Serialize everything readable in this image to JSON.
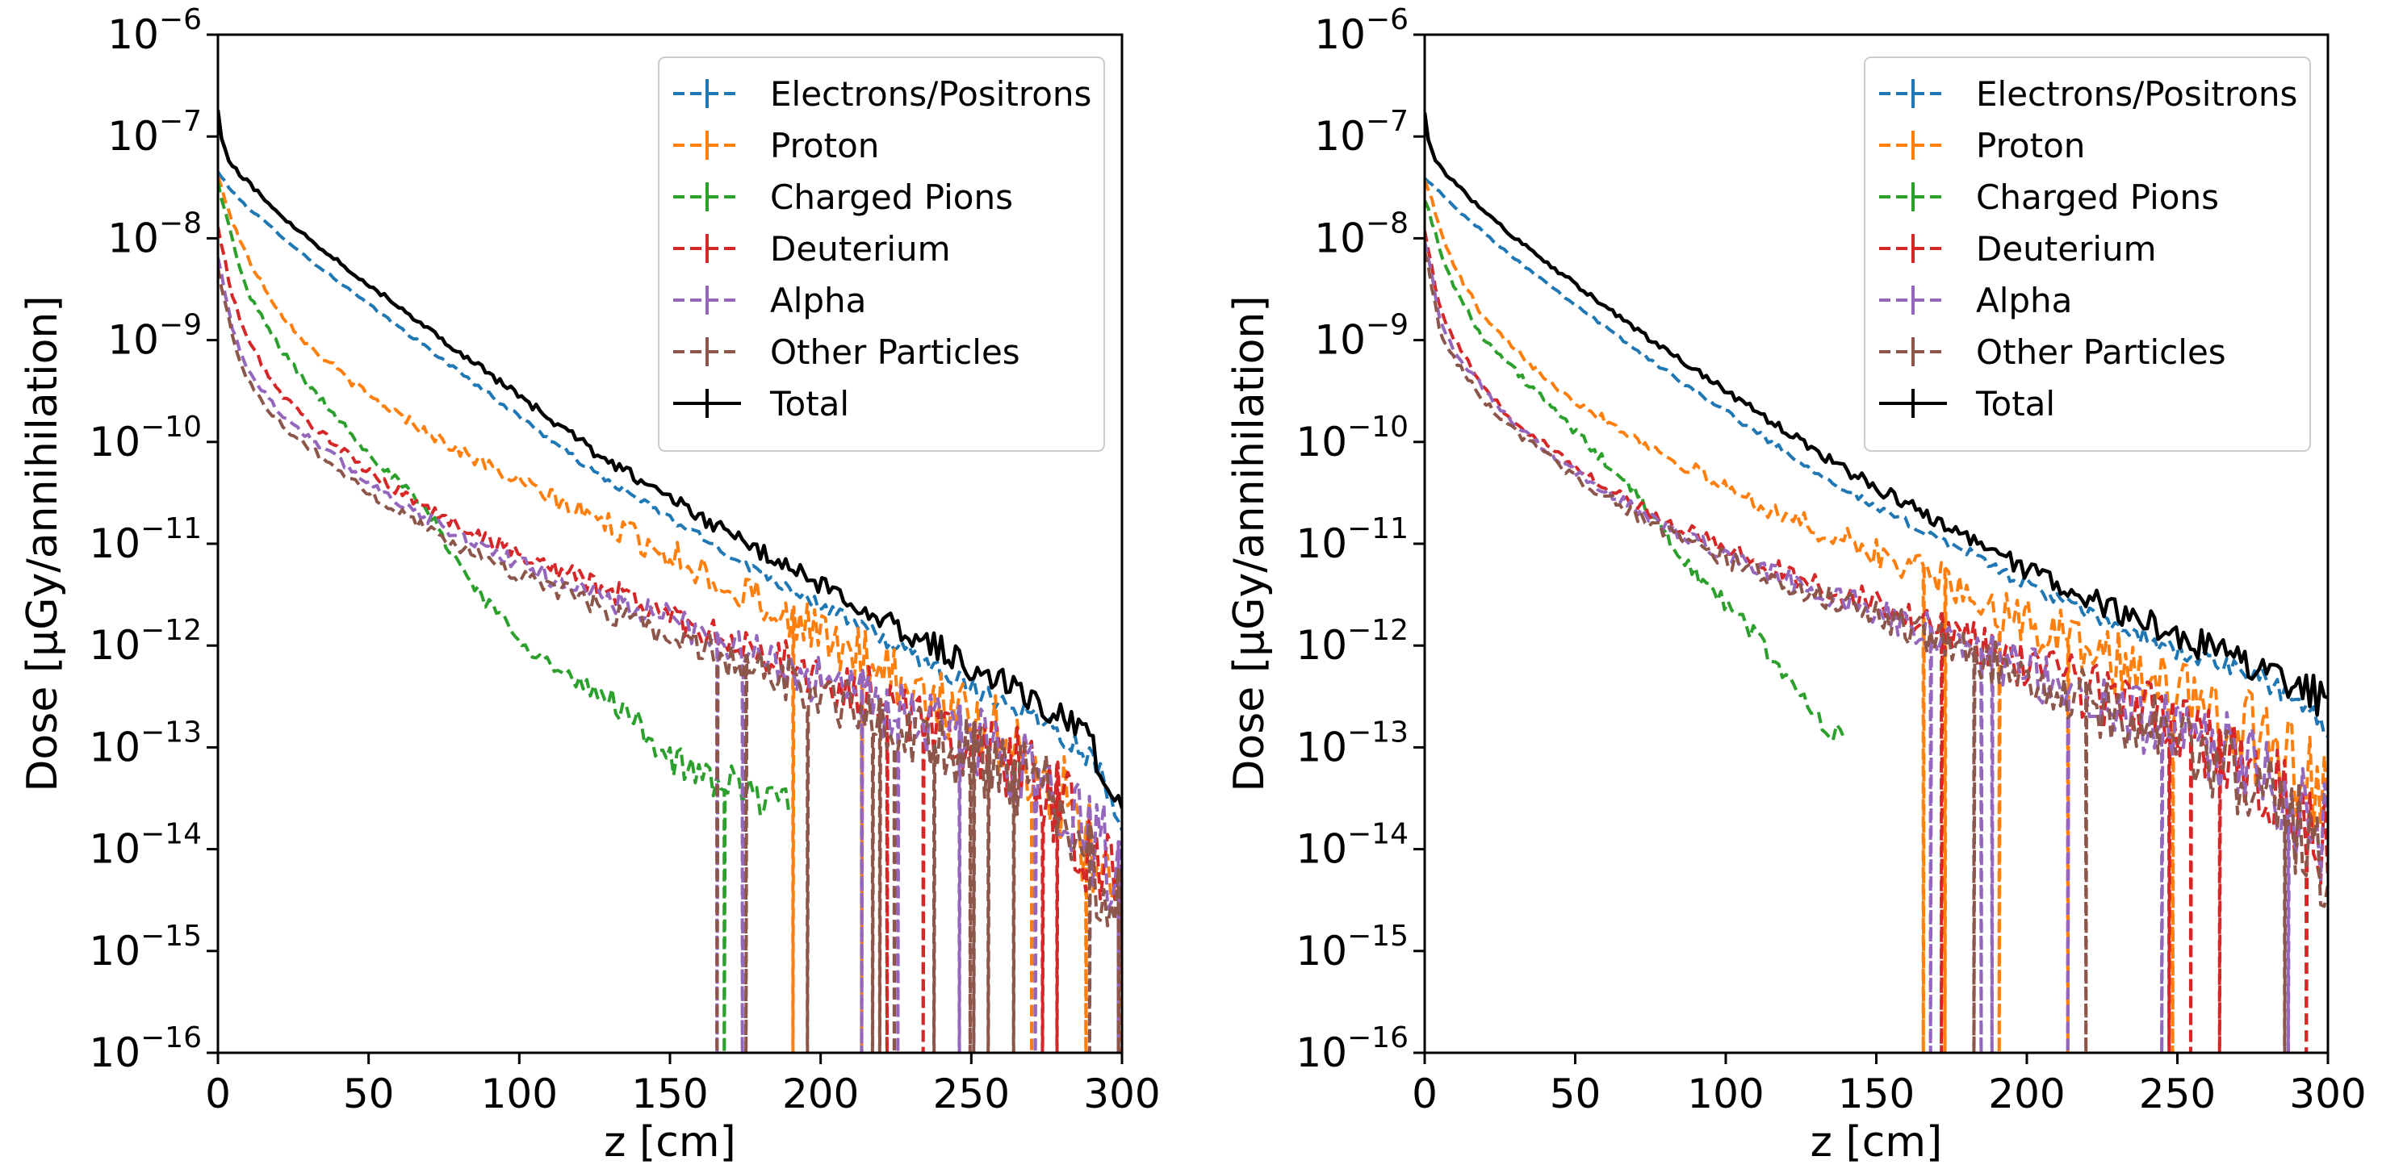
{
  "chart_data": [
    {
      "type": "line",
      "panel": "left",
      "title": "",
      "xlabel": "z [cm]",
      "ylabel": "Dose [µGy/annihilation]",
      "xlim": [
        0,
        300
      ],
      "ylim": [
        1e-16,
        1e-06
      ],
      "yscale": "log",
      "grid": false,
      "legend_position": "top-right",
      "x_ticks": [
        0,
        50,
        100,
        150,
        200,
        250,
        300
      ],
      "y_tick_exponents": [
        -16,
        -15,
        -14,
        -13,
        -12,
        -11,
        -10,
        -9,
        -8,
        -7,
        -6
      ],
      "y_tick_base": "10",
      "series": [
        {
          "name": "Electrons/Positrons",
          "color": "#1f77b4",
          "style": "dashed",
          "x": [
            0,
            5,
            10,
            20,
            30,
            50,
            75,
            100,
            125,
            150,
            175,
            200,
            225,
            250,
            275,
            290,
            300
          ],
          "log10_dose": [
            -7.35,
            -7.55,
            -7.7,
            -7.95,
            -8.2,
            -8.65,
            -9.2,
            -9.75,
            -10.3,
            -10.75,
            -11.2,
            -11.6,
            -12.0,
            -12.4,
            -12.75,
            -13.1,
            -13.7
          ]
        },
        {
          "name": "Proton",
          "color": "#ff7f0e",
          "style": "dashed",
          "x": [
            0,
            5,
            10,
            20,
            30,
            50,
            75,
            100,
            125,
            150,
            175,
            200,
            225,
            250,
            265,
            280,
            300
          ],
          "log10_dose": [
            -7.4,
            -7.85,
            -8.2,
            -8.7,
            -9.05,
            -9.55,
            -10.0,
            -10.4,
            -10.75,
            -11.1,
            -11.5,
            -11.9,
            -12.3,
            -12.7,
            -13.0,
            -13.5,
            -14.5
          ]
        },
        {
          "name": "Charged Pions",
          "color": "#2ca02c",
          "style": "dashed",
          "x": [
            0,
            5,
            10,
            20,
            30,
            50,
            70,
            80,
            90,
            100,
            110,
            120,
            130,
            140,
            150,
            160,
            175,
            190
          ],
          "log10_dose": [
            -7.45,
            -8.05,
            -8.55,
            -9.05,
            -9.45,
            -10.1,
            -10.7,
            -11.2,
            -11.6,
            -11.9,
            -12.2,
            -12.4,
            -12.5,
            -12.8,
            -13.1,
            -13.3,
            -13.4,
            -13.6
          ]
        },
        {
          "name": "Deuterium",
          "color": "#d62728",
          "style": "dashed",
          "x": [
            0,
            5,
            10,
            20,
            30,
            50,
            75,
            100,
            125,
            150,
            175,
            200,
            225,
            250,
            275,
            300
          ],
          "log10_dose": [
            -7.9,
            -8.6,
            -9.0,
            -9.5,
            -9.8,
            -10.3,
            -10.75,
            -11.1,
            -11.4,
            -11.7,
            -12.0,
            -12.3,
            -12.6,
            -12.9,
            -13.4,
            -14.5
          ]
        },
        {
          "name": "Alpha",
          "color": "#9467bd",
          "style": "dashed",
          "x": [
            0,
            5,
            10,
            20,
            30,
            50,
            75,
            100,
            125,
            150,
            175,
            200,
            225,
            250,
            275,
            300
          ],
          "log10_dose": [
            -8.2,
            -8.9,
            -9.3,
            -9.7,
            -9.95,
            -10.4,
            -10.85,
            -11.2,
            -11.5,
            -11.75,
            -12.05,
            -12.35,
            -12.65,
            -12.95,
            -13.3,
            -14.3
          ]
        },
        {
          "name": "Other Particles",
          "color": "#8c564b",
          "style": "dashed",
          "x": [
            0,
            5,
            10,
            20,
            30,
            50,
            75,
            100,
            125,
            150,
            175,
            200,
            225,
            250,
            275,
            300
          ],
          "log10_dose": [
            -8.3,
            -9.0,
            -9.4,
            -9.8,
            -10.05,
            -10.5,
            -10.95,
            -11.3,
            -11.6,
            -11.9,
            -12.2,
            -12.5,
            -12.8,
            -13.1,
            -13.5,
            -14.6
          ]
        },
        {
          "name": "Total",
          "color": "#000000",
          "style": "solid",
          "x": [
            0,
            1,
            3,
            5,
            10,
            20,
            30,
            50,
            75,
            100,
            125,
            150,
            175,
            200,
            225,
            250,
            275,
            290,
            300
          ],
          "log10_dose": [
            -6.75,
            -7.0,
            -7.2,
            -7.3,
            -7.45,
            -7.75,
            -8.0,
            -8.45,
            -9.0,
            -9.55,
            -10.1,
            -10.55,
            -11.0,
            -11.4,
            -11.8,
            -12.2,
            -12.6,
            -13.0,
            -13.6
          ]
        }
      ]
    },
    {
      "type": "line",
      "panel": "right",
      "title": "",
      "xlabel": "z [cm]",
      "ylabel": "Dose [µGy/annihilation]",
      "xlim": [
        0,
        300
      ],
      "ylim": [
        1e-16,
        1e-06
      ],
      "yscale": "log",
      "grid": false,
      "legend_position": "top-right",
      "x_ticks": [
        0,
        50,
        100,
        150,
        200,
        250,
        300
      ],
      "y_tick_exponents": [
        -16,
        -15,
        -14,
        -13,
        -12,
        -11,
        -10,
        -9,
        -8,
        -7,
        -6
      ],
      "y_tick_base": "10",
      "series": [
        {
          "name": "Electrons/Positrons",
          "color": "#1f77b4",
          "style": "dashed",
          "x": [
            0,
            5,
            10,
            20,
            30,
            50,
            75,
            100,
            125,
            150,
            175,
            200,
            225,
            250,
            275,
            290,
            300
          ],
          "log10_dose": [
            -7.4,
            -7.55,
            -7.7,
            -7.95,
            -8.2,
            -8.65,
            -9.2,
            -9.7,
            -10.2,
            -10.65,
            -11.0,
            -11.4,
            -11.75,
            -12.05,
            -12.3,
            -12.55,
            -12.8
          ]
        },
        {
          "name": "Proton",
          "color": "#ff7f0e",
          "style": "dashed",
          "x": [
            0,
            5,
            10,
            20,
            30,
            50,
            75,
            100,
            125,
            150,
            175,
            200,
            225,
            250,
            275,
            300
          ],
          "log10_dose": [
            -7.4,
            -7.9,
            -8.3,
            -8.8,
            -9.1,
            -9.6,
            -10.05,
            -10.45,
            -10.8,
            -11.1,
            -11.4,
            -11.75,
            -12.1,
            -12.5,
            -12.9,
            -13.5
          ]
        },
        {
          "name": "Charged Pions",
          "color": "#2ca02c",
          "style": "dashed",
          "x": [
            0,
            5,
            10,
            20,
            30,
            50,
            70,
            80,
            90,
            100,
            110,
            120,
            130,
            140
          ],
          "log10_dose": [
            -7.6,
            -8.1,
            -8.5,
            -9.0,
            -9.3,
            -9.9,
            -10.5,
            -10.9,
            -11.3,
            -11.6,
            -11.9,
            -12.3,
            -12.7,
            -13.0
          ]
        },
        {
          "name": "Deuterium",
          "color": "#d62728",
          "style": "dashed",
          "x": [
            0,
            5,
            10,
            20,
            30,
            50,
            75,
            100,
            125,
            150,
            175,
            200,
            225,
            250,
            275,
            300
          ],
          "log10_dose": [
            -7.9,
            -8.7,
            -9.0,
            -9.5,
            -9.8,
            -10.25,
            -10.7,
            -11.05,
            -11.35,
            -11.6,
            -11.9,
            -12.2,
            -12.5,
            -12.8,
            -13.2,
            -14.0
          ]
        },
        {
          "name": "Alpha",
          "color": "#9467bd",
          "style": "dashed",
          "x": [
            0,
            5,
            10,
            20,
            30,
            50,
            75,
            100,
            125,
            150,
            175,
            200,
            225,
            250,
            275,
            300
          ],
          "log10_dose": [
            -8.0,
            -8.8,
            -9.1,
            -9.5,
            -9.85,
            -10.3,
            -10.75,
            -11.1,
            -11.4,
            -11.65,
            -11.95,
            -12.25,
            -12.55,
            -12.85,
            -13.2,
            -13.9
          ]
        },
        {
          "name": "Other Particles",
          "color": "#8c564b",
          "style": "dashed",
          "x": [
            0,
            5,
            10,
            20,
            30,
            50,
            75,
            100,
            125,
            150,
            175,
            200,
            225,
            250,
            275,
            300
          ],
          "log10_dose": [
            -8.1,
            -8.9,
            -9.2,
            -9.6,
            -9.9,
            -10.35,
            -10.8,
            -11.15,
            -11.45,
            -11.7,
            -12.0,
            -12.3,
            -12.6,
            -12.9,
            -13.3,
            -14.1
          ]
        },
        {
          "name": "Total",
          "color": "#000000",
          "style": "solid",
          "x": [
            0,
            1,
            3,
            5,
            10,
            20,
            30,
            50,
            75,
            100,
            125,
            150,
            175,
            200,
            225,
            250,
            275,
            290,
            300
          ],
          "log10_dose": [
            -6.75,
            -7.0,
            -7.2,
            -7.3,
            -7.45,
            -7.75,
            -8.0,
            -8.45,
            -9.0,
            -9.5,
            -10.0,
            -10.45,
            -10.85,
            -11.25,
            -11.6,
            -11.9,
            -12.2,
            -12.4,
            -12.55
          ]
        }
      ]
    }
  ]
}
